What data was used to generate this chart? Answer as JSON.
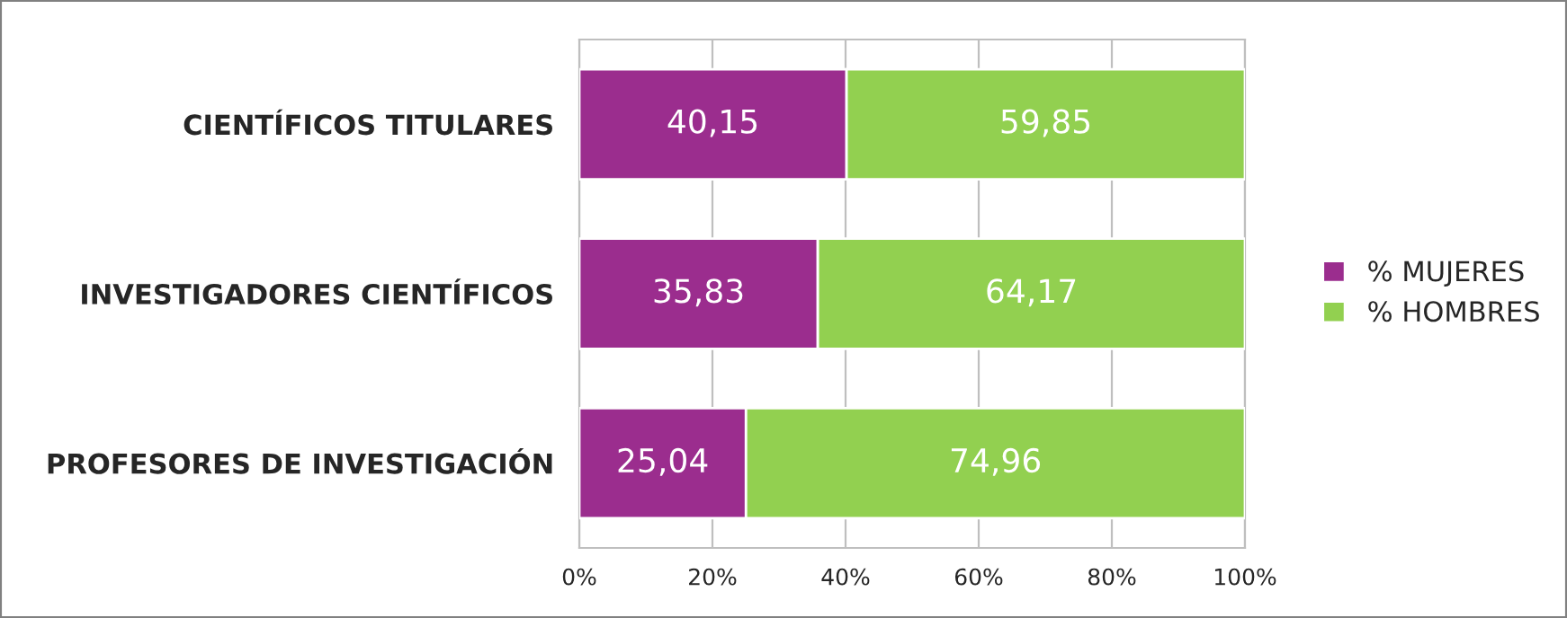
{
  "chart_data": {
    "type": "bar",
    "orientation": "horizontal",
    "stacked": true,
    "categories": [
      "CIENTÍFICOS TITULARES",
      "INVESTIGADORES CIENTÍFICOS",
      "PROFESORES DE INVESTIGACIÓN"
    ],
    "series": [
      {
        "name": "% MUJERES",
        "color": "#9b2d8e",
        "values": [
          40.15,
          35.83,
          25.04
        ],
        "value_labels": [
          "40,15",
          "35,83",
          "25,04"
        ]
      },
      {
        "name": "% HOMBRES",
        "color": "#92d050",
        "values": [
          59.85,
          64.17,
          74.96
        ],
        "value_labels": [
          "59,85",
          "64,17",
          "74,96"
        ]
      }
    ],
    "xlim": [
      0,
      100
    ],
    "xticks": [
      {
        "value": 0,
        "label": "0%"
      },
      {
        "value": 20,
        "label": "20%"
      },
      {
        "value": 40,
        "label": "40%"
      },
      {
        "value": 60,
        "label": "60%"
      },
      {
        "value": 80,
        "label": "80%"
      },
      {
        "value": 100,
        "label": "100%"
      }
    ],
    "grid": "x",
    "legend": "right"
  }
}
